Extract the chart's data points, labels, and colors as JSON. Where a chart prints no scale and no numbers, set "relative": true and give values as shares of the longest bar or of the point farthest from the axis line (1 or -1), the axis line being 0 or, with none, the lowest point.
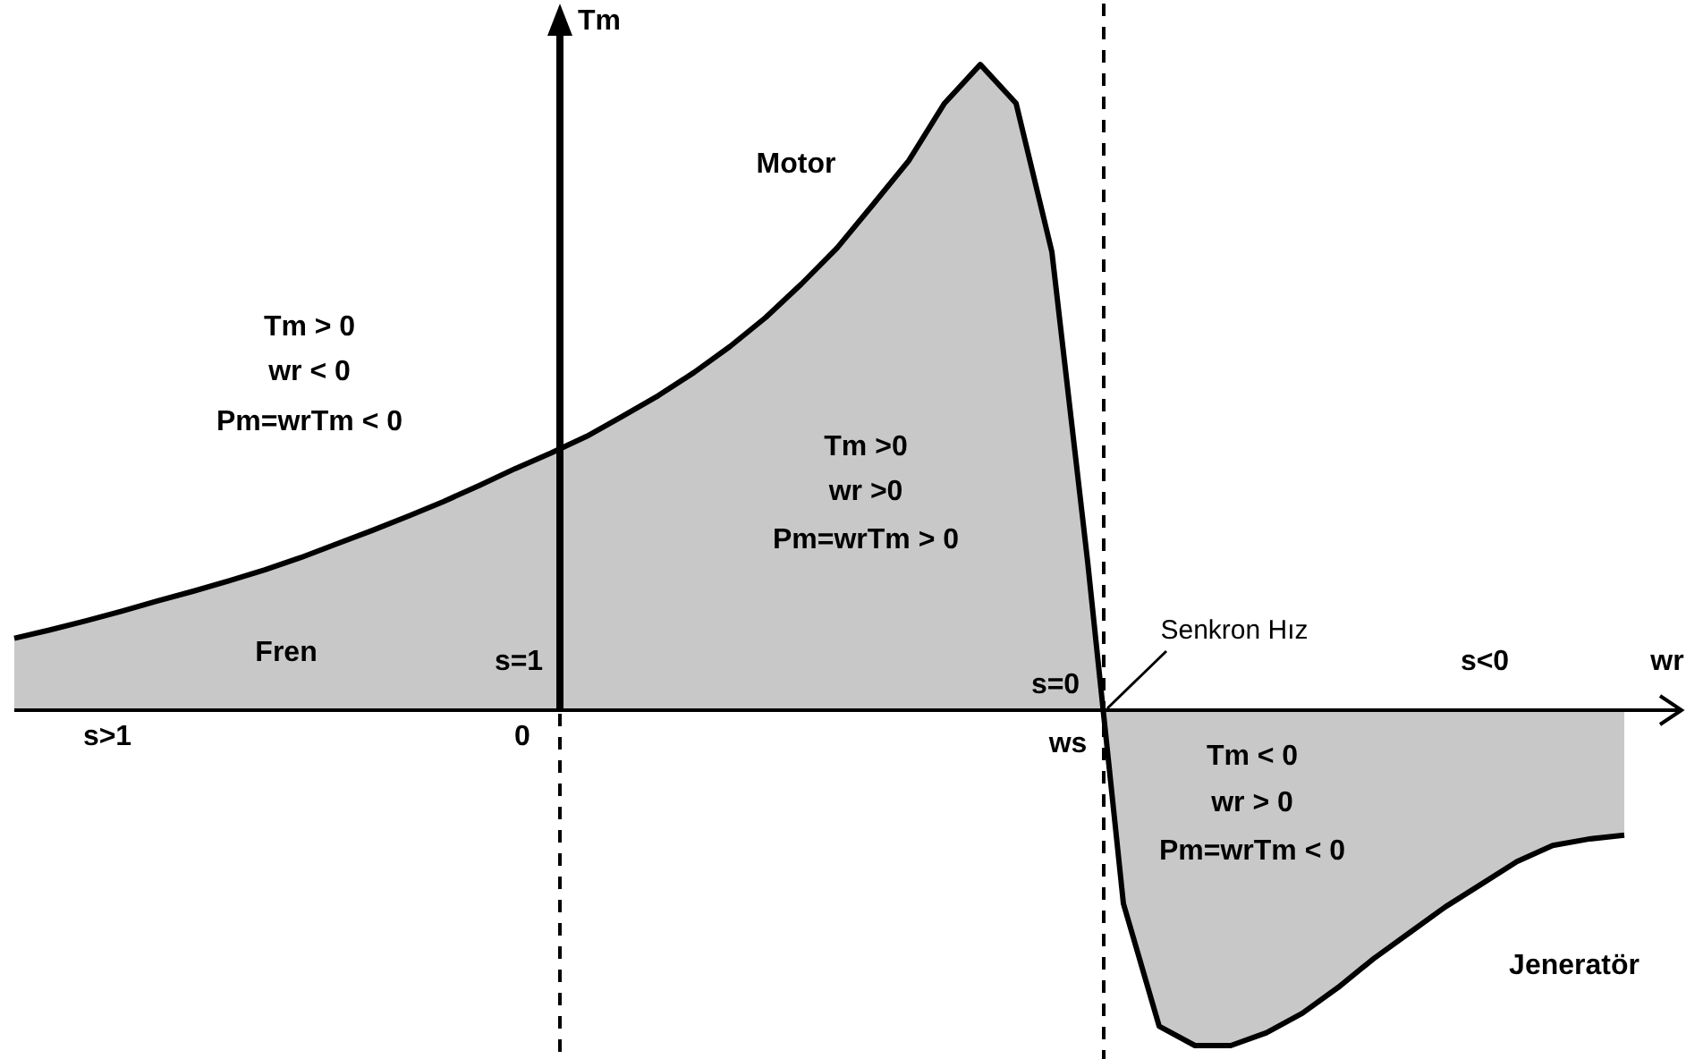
{
  "chart_data": {
    "type": "area",
    "relative": true,
    "xlabel": "wr",
    "ylabel": "Tm",
    "categories": [
      null,
      null,
      null,
      null,
      null,
      null,
      null,
      null,
      null,
      null,
      null,
      null,
      null,
      null,
      null,
      null,
      null,
      null,
      null,
      null,
      null,
      null,
      null,
      null,
      null,
      null,
      null,
      null,
      null,
      null,
      null,
      null,
      null,
      null,
      null,
      null,
      null,
      null,
      null,
      null,
      null,
      null,
      null,
      null,
      null,
      null
    ],
    "series": [
      {
        "color": "#c8c8c8",
        "values": [
          0.111,
          0.124,
          0.138,
          0.153,
          0.169,
          0.184,
          0.2,
          0.217,
          0.236,
          0.257,
          0.278,
          0.3,
          0.323,
          0.348,
          0.374,
          0.398,
          0.424,
          0.455,
          0.487,
          0.523,
          0.563,
          0.608,
          0.66,
          0.716,
          0.783,
          0.851,
          0.94,
          1,
          0.94,
          0.71,
          0.23,
          -0.3,
          -0.49,
          -0.52,
          -0.52,
          -0.5,
          -0.47,
          -0.43,
          -0.385,
          -0.345,
          -0.305,
          -0.27,
          -0.235,
          -0.21,
          -0.2,
          -0.194
        ]
      }
    ],
    "marker": "none",
    "line_style": "solid",
    "legend": false,
    "annotations": [
      "Tm > 0",
      "wr < 0",
      "Pm=wrTm < 0",
      "Tm >0",
      "wr >0",
      "Pm=wrTm > 0",
      "Tm < 0",
      "wr > 0",
      "Pm=wrTm < 0",
      "Motor",
      "Fren",
      "Jeneratör",
      "s=1",
      "s=0",
      "s>1",
      "s<0",
      "0",
      "ws",
      "Senkron Hız"
    ]
  }
}
